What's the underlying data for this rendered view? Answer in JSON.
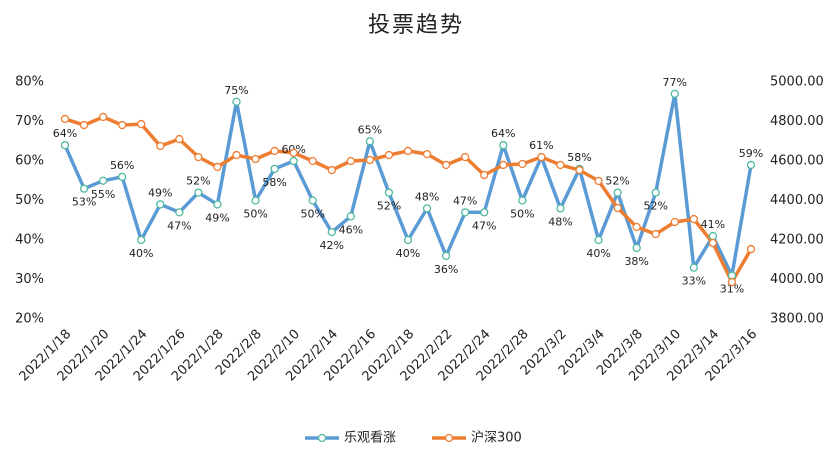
{
  "chart_data": {
    "type": "line",
    "title": "投票趋势",
    "categories": [
      "2022/1/18",
      null,
      "2022/1/20",
      null,
      "2022/1/24",
      null,
      "2022/1/26",
      null,
      "2022/1/28",
      null,
      "2022/2/8",
      null,
      "2022/2/10",
      null,
      "2022/2/14",
      null,
      "2022/2/16",
      null,
      "2022/2/18",
      null,
      "2022/2/22",
      null,
      "2022/2/24",
      null,
      "2022/2/28",
      null,
      "2022/3/2",
      null,
      "2022/3/4",
      null,
      "2022/3/8",
      null,
      "2022/3/10",
      null,
      "2022/3/14",
      null,
      "2022/3/16"
    ],
    "series": [
      {
        "name": "乐观看涨",
        "color": "#5b9bd5",
        "marker_color": "#4fb8a0",
        "values": [
          64,
          53,
          55,
          56,
          40,
          49,
          47,
          52,
          49,
          75,
          50,
          58,
          60,
          50,
          42,
          46,
          65,
          52,
          40,
          48,
          36,
          47,
          47,
          64,
          50,
          61,
          48,
          58,
          40,
          52,
          38,
          52,
          77,
          33,
          41,
          31,
          59
        ],
        "value_labels": [
          "64%",
          "53%",
          "55%",
          "56%",
          "40%",
          "49%",
          "47%",
          "52%",
          "49%",
          "75%",
          "50%",
          "58%",
          "60%",
          "50%",
          "42%",
          "46%",
          "65%",
          "52%",
          "40%",
          "48%",
          "36%",
          "47%",
          "47%",
          "64%",
          "50%",
          "61%",
          "48%",
          "58%",
          "40%",
          "52%",
          "38%",
          "52%",
          "77%",
          "33%",
          "41%",
          "31%",
          "59%"
        ]
      },
      {
        "name": "沪深300",
        "color": "#ed7d31",
        "marker_color": "#ed7d31",
        "axis": "y2",
        "values": [
          4813,
          4782,
          4823,
          4782,
          4787,
          4676,
          4711,
          4620,
          4570,
          4630,
          4610,
          4651,
          4641,
          4600,
          4554,
          4600,
          4605,
          4630,
          4651,
          4635,
          4580,
          4620,
          4529,
          4580,
          4585,
          4620,
          4580,
          4554,
          4499,
          4362,
          4266,
          4230,
          4291,
          4306,
          4185,
          3987,
          4154
        ]
      }
    ],
    "ylim": [
      20,
      80
    ],
    "yticks": [
      {
        "value": 20,
        "label": "20%"
      },
      {
        "value": 30,
        "label": "30%"
      },
      {
        "value": 40,
        "label": "40%"
      },
      {
        "value": 50,
        "label": "50%"
      },
      {
        "value": 60,
        "label": "60%"
      },
      {
        "value": 70,
        "label": "70%"
      },
      {
        "value": 80,
        "label": "80%"
      }
    ],
    "y2lim": [
      3800,
      5000
    ],
    "y2ticks": [
      {
        "value": 3800,
        "label": "3800.00"
      },
      {
        "value": 4000,
        "label": "4000.00"
      },
      {
        "value": 4200,
        "label": "4200.00"
      },
      {
        "value": 4400,
        "label": "4400.00"
      },
      {
        "value": 4600,
        "label": "4600.00"
      },
      {
        "value": 4800,
        "label": "4800.00"
      },
      {
        "value": 5000,
        "label": "5000.00"
      }
    ],
    "legend": "bottom"
  }
}
